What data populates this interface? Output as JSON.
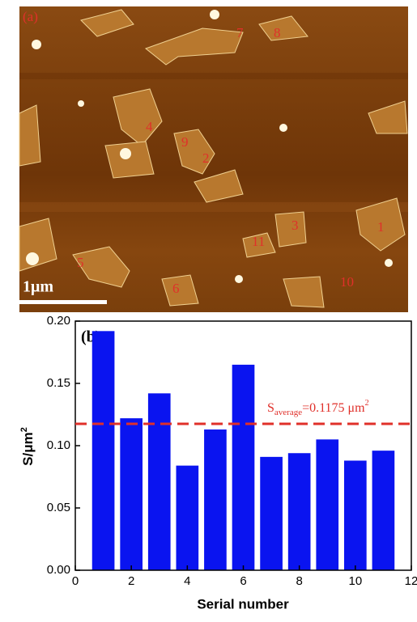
{
  "image": {
    "label": "(a)",
    "scale_bar": "1μm",
    "flake_labels": [
      "1",
      "2",
      "3",
      "4",
      "5",
      "6",
      "7",
      "8",
      "9",
      "10",
      "11"
    ]
  },
  "chart_data": {
    "type": "bar",
    "panel_label": "(b)",
    "x_label": "Serial number",
    "y_label": "S/μm",
    "y_label_sup": "2",
    "x": [
      1,
      2,
      3,
      4,
      5,
      6,
      7,
      8,
      9,
      10,
      11
    ],
    "values": [
      0.192,
      0.122,
      0.142,
      0.084,
      0.113,
      0.165,
      0.091,
      0.094,
      0.105,
      0.088,
      0.096
    ],
    "color": "#0a14f0",
    "xlim": [
      0,
      12
    ],
    "xticks": [
      0,
      2,
      4,
      6,
      8,
      10,
      12
    ],
    "ylim": [
      0,
      0.2
    ],
    "yticks": [
      {
        "value": 0,
        "label": "0.00"
      },
      {
        "value": 0.05,
        "label": "0.05"
      },
      {
        "value": 0.1,
        "label": "0.10"
      },
      {
        "value": 0.15,
        "label": "0.15"
      },
      {
        "value": 0.2,
        "label": "0.20"
      }
    ],
    "average_line": {
      "value": 0.1175,
      "color": "#e0302a",
      "symbol": "S",
      "subscript": "average",
      "text": "=0.1175 μm",
      "superscript": "2"
    }
  }
}
